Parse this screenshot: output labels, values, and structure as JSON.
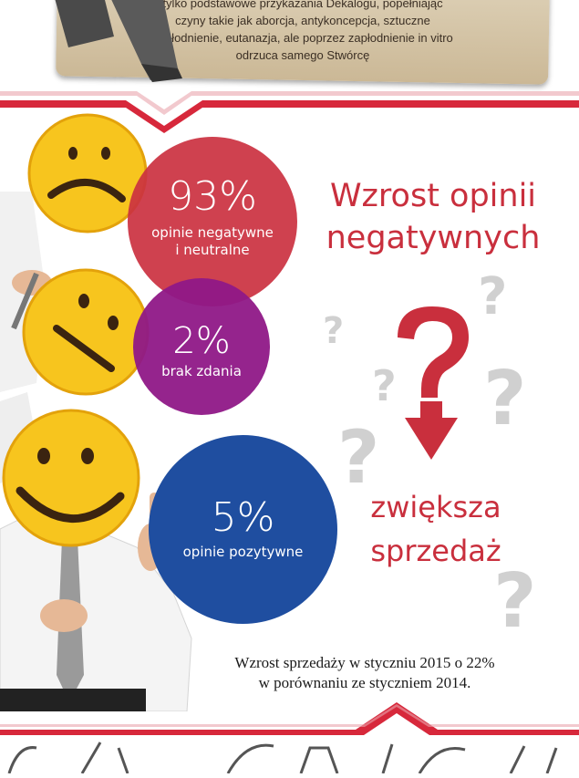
{
  "note": {
    "lines": [
      "tylko podstawowe przykazania Dekalogu, popełniając",
      "czyny takie jak aborcja, antykoncepcja, sztuczne",
      "zapłodnienie, eutanazja, ale poprzez zapłodnienie in vitro",
      "odrzuca samego Stwórcę"
    ]
  },
  "stats": {
    "negative": {
      "percent": "93%",
      "label_line1": "opinie negatywne",
      "label_line2": "i neutralne",
      "color": "#cb3140"
    },
    "neutral": {
      "percent": "2%",
      "label": "brak zdania",
      "color": "#8f1887"
    },
    "positive": {
      "percent": "5%",
      "label": "opinie pozytywne",
      "color": "#1f4ea0"
    }
  },
  "heading": {
    "line1": "Wzrost opinii",
    "line2": "negatywnych"
  },
  "sales": {
    "line1": "zwiększa",
    "line2": "sprzedaż"
  },
  "footnote": {
    "line1": "Wzrost sprzedaży w styczniu 2015 o 22%",
    "line2": "w porównaniu ze styczniem 2014."
  },
  "icons": {
    "sad": "sad-face-icon",
    "neutral": "neutral-face-icon",
    "happy": "happy-face-icon",
    "question": "question-mark-icon",
    "arrow": "arrow-down-icon"
  },
  "colors": {
    "accent_red": "#c92f3d",
    "smiley_yellow": "#f7c51e",
    "band_red": "#d7283b"
  }
}
